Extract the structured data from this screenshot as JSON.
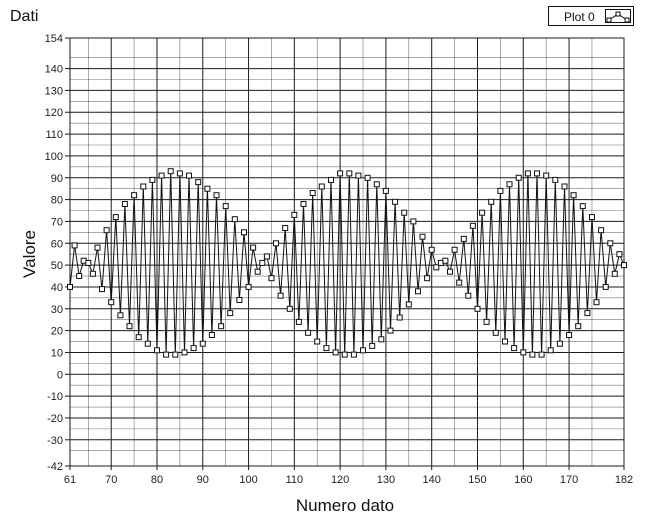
{
  "chart_data": {
    "type": "line",
    "title": "Dati",
    "xlabel": "Numero dato",
    "ylabel": "Valore",
    "xlim": [
      61,
      182
    ],
    "ylim": [
      -42,
      154
    ],
    "x_ticks": [
      61,
      70,
      80,
      90,
      100,
      110,
      120,
      130,
      140,
      150,
      160,
      170,
      182
    ],
    "y_ticks": [
      -42,
      -30,
      -20,
      -10,
      0,
      10,
      20,
      30,
      40,
      50,
      60,
      70,
      80,
      90,
      100,
      110,
      120,
      130,
      140,
      154
    ],
    "grid": true,
    "legend_position": "top-right",
    "colors": {
      "line": "#111111",
      "marker_fill": "#ffffff",
      "grid": "#1a1a1a"
    },
    "series": [
      {
        "name": "Plot 0",
        "marker": "square",
        "x": [
          61,
          62,
          63,
          64,
          65,
          66,
          67,
          68,
          69,
          70,
          71,
          72,
          73,
          74,
          75,
          76,
          77,
          78,
          79,
          80,
          81,
          82,
          83,
          84,
          85,
          86,
          87,
          88,
          89,
          90,
          91,
          92,
          93,
          94,
          95,
          96,
          97,
          98,
          99,
          100,
          101,
          102,
          103,
          104,
          105,
          106,
          107,
          108,
          109,
          110,
          111,
          112,
          113,
          114,
          115,
          116,
          117,
          118,
          119,
          120,
          121,
          122,
          123,
          124,
          125,
          126,
          127,
          128,
          129,
          130,
          131,
          132,
          133,
          134,
          135,
          136,
          137,
          138,
          139,
          140,
          141,
          142,
          143,
          144,
          145,
          146,
          147,
          148,
          149,
          150,
          151,
          152,
          153,
          154,
          155,
          156,
          157,
          158,
          159,
          160,
          161,
          162,
          163,
          164,
          165,
          166,
          167,
          168,
          169,
          170,
          171,
          172,
          173,
          174,
          175,
          176,
          177,
          178,
          179,
          180,
          181,
          182
        ],
        "values": [
          40,
          59,
          45,
          52,
          51,
          46,
          58,
          39,
          66,
          33,
          72,
          27,
          78,
          22,
          82,
          17,
          86,
          14,
          89,
          11,
          91,
          9,
          93,
          9,
          92,
          10,
          91,
          12,
          88,
          14,
          85,
          18,
          82,
          22,
          77,
          28,
          71,
          34,
          65,
          40,
          58,
          47,
          51,
          54,
          44,
          60,
          36,
          67,
          30,
          73,
          24,
          78,
          19,
          83,
          15,
          86,
          12,
          89,
          10,
          92,
          9,
          92,
          9,
          91,
          11,
          90,
          13,
          87,
          16,
          84,
          20,
          79,
          26,
          74,
          32,
          70,
          38,
          63,
          44,
          57,
          49,
          51,
          52,
          47,
          57,
          42,
          62,
          36,
          68,
          30,
          74,
          24,
          79,
          19,
          84,
          15,
          87,
          12,
          90,
          10,
          92,
          9,
          92,
          9,
          91,
          11,
          89,
          14,
          86,
          18,
          82,
          22,
          77,
          28,
          72,
          33,
          66,
          40,
          60,
          46,
          55,
          50
        ]
      }
    ]
  }
}
